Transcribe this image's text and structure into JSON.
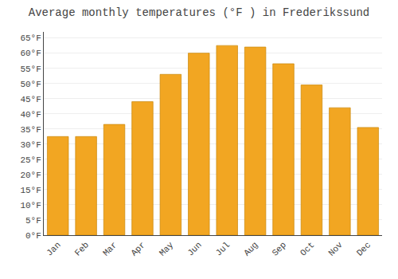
{
  "chart_data": {
    "type": "bar",
    "title": "Average monthly temperatures (°F ) in Frederikssund",
    "categories": [
      "Jan",
      "Feb",
      "Mar",
      "Apr",
      "May",
      "Jun",
      "Jul",
      "Aug",
      "Sep",
      "Oct",
      "Nov",
      "Dec"
    ],
    "values": [
      32.5,
      32.5,
      36.5,
      44,
      53,
      60,
      62.5,
      62,
      56.5,
      49.5,
      42,
      35.5
    ],
    "color": "#F2A622",
    "ylim": [
      0,
      67
    ],
    "yticks": [
      {
        "value": 0,
        "label": "0°F"
      },
      {
        "value": 5,
        "label": "5°F"
      },
      {
        "value": 10,
        "label": "10°F"
      },
      {
        "value": 15,
        "label": "15°F"
      },
      {
        "value": 20,
        "label": "20°F"
      },
      {
        "value": 25,
        "label": "25°F"
      },
      {
        "value": 30,
        "label": "30°F"
      },
      {
        "value": 35,
        "label": "35°F"
      },
      {
        "value": 40,
        "label": "40°F"
      },
      {
        "value": 45,
        "label": "45°F"
      },
      {
        "value": 50,
        "label": "50°F"
      },
      {
        "value": 55,
        "label": "55°F"
      },
      {
        "value": 60,
        "label": "60°F"
      },
      {
        "value": 65,
        "label": "65°F"
      }
    ],
    "grid": true
  }
}
